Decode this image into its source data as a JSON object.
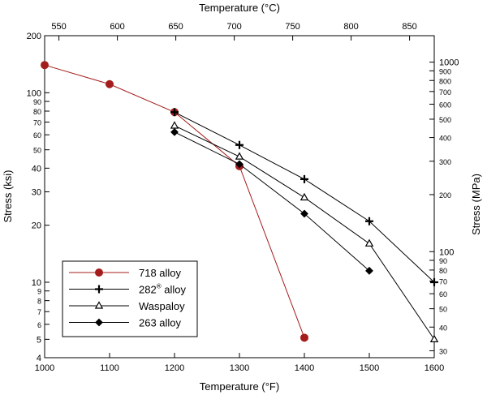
{
  "chart_data": {
    "type": "line",
    "x_bottom": {
      "label": "Temperature (°F)",
      "ticks": [
        1000,
        1100,
        1200,
        1300,
        1400,
        1500,
        1600
      ],
      "range": [
        1000,
        1600
      ]
    },
    "x_top": {
      "label": "Temperature (°C)",
      "ticks": [
        550,
        600,
        650,
        700,
        750,
        800,
        850
      ]
    },
    "y_left": {
      "label": "Stress (ksi)",
      "scale": "log",
      "range": [
        4,
        200
      ],
      "major_ticks": [
        {
          "value": 4,
          "label": "4"
        },
        {
          "value": 5,
          "label": "5"
        },
        {
          "value": 6,
          "label": "6"
        },
        {
          "value": 7,
          "label": "7"
        },
        {
          "value": 8,
          "label": "8"
        },
        {
          "value": 9,
          "label": "9"
        },
        {
          "value": 10,
          "label": "10"
        },
        {
          "value": 20,
          "label": "20"
        },
        {
          "value": 30,
          "label": "30"
        },
        {
          "value": 40,
          "label": "40"
        },
        {
          "value": 50,
          "label": "50"
        },
        {
          "value": 60,
          "label": "60"
        },
        {
          "value": 70,
          "label": "70"
        },
        {
          "value": 80,
          "label": "80"
        },
        {
          "value": 90,
          "label": "90"
        },
        {
          "value": 100,
          "label": "100"
        },
        {
          "value": 200,
          "label": "200"
        }
      ]
    },
    "y_right": {
      "label": "Stress (MPa)",
      "scale": "log",
      "ticks": [
        {
          "value": 30,
          "label": "30"
        },
        {
          "value": 40,
          "label": "40"
        },
        {
          "value": 50,
          "label": "50"
        },
        {
          "value": 60,
          "label": "60"
        },
        {
          "value": 70,
          "label": "70"
        },
        {
          "value": 80,
          "label": "80"
        },
        {
          "value": 90,
          "label": "90"
        },
        {
          "value": 100,
          "label": "100"
        },
        {
          "value": 200,
          "label": "200"
        },
        {
          "value": 300,
          "label": "300"
        },
        {
          "value": 400,
          "label": "400"
        },
        {
          "value": 500,
          "label": "500"
        },
        {
          "value": 600,
          "label": "600"
        },
        {
          "value": 700,
          "label": "700"
        },
        {
          "value": 800,
          "label": "800"
        },
        {
          "value": 900,
          "label": "900"
        },
        {
          "value": 1000,
          "label": "1000"
        }
      ]
    },
    "series": [
      {
        "name": "718 alloy",
        "color": "#a51c1c",
        "marker": "circle",
        "x": [
          1000,
          1100,
          1200,
          1300,
          1400
        ],
        "y": [
          140,
          111,
          79,
          41,
          5.1
        ]
      },
      {
        "name": "282 alloy",
        "superscript": "®",
        "color": "#000000",
        "marker": "plus",
        "x": [
          1200,
          1300,
          1400,
          1500,
          1600
        ],
        "y": [
          79,
          53,
          35,
          21,
          10
        ]
      },
      {
        "name": "Waspaloy",
        "color": "#000000",
        "marker": "triangle",
        "x": [
          1200,
          1300,
          1400,
          1500,
          1600
        ],
        "y": [
          67,
          46,
          28,
          16,
          5
        ]
      },
      {
        "name": "263 alloy",
        "color": "#000000",
        "marker": "diamond",
        "x": [
          1200,
          1300,
          1400,
          1500
        ],
        "y": [
          62,
          42,
          23,
          11.5
        ]
      }
    ],
    "legend": "lower-left"
  }
}
